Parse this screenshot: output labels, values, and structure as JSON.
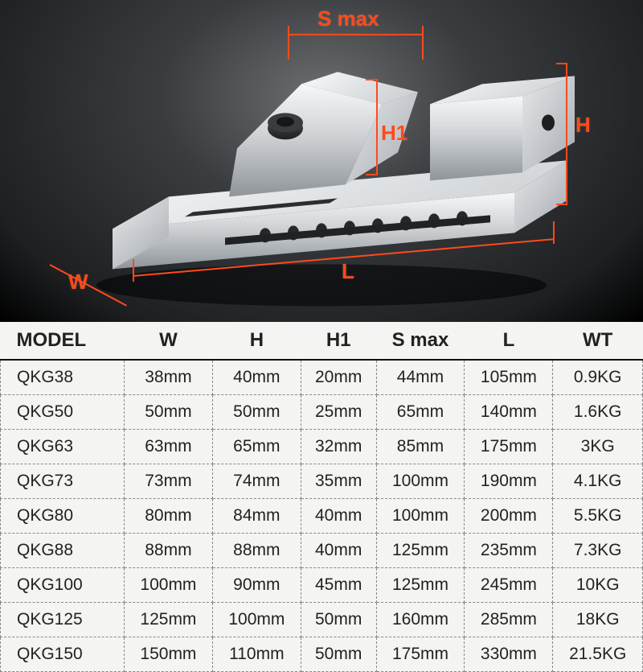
{
  "diagram": {
    "labels": {
      "smax": "S  max",
      "h": "H",
      "h1": "H1",
      "l": "L",
      "w": "W"
    },
    "dim_color": "#ff4a1c",
    "background": "radial-gradient dark gray to black",
    "product": "precision machine vise, steel, silver"
  },
  "table": {
    "columns": [
      "MODEL",
      "W",
      "H",
      "H1",
      "S max",
      "L",
      "WT"
    ],
    "rows": [
      [
        "QKG38",
        "38mm",
        "40mm",
        "20mm",
        "44mm",
        "105mm",
        "0.9KG"
      ],
      [
        "QKG50",
        "50mm",
        "50mm",
        "25mm",
        "65mm",
        "140mm",
        "1.6KG"
      ],
      [
        "QKG63",
        "63mm",
        "65mm",
        "32mm",
        "85mm",
        "175mm",
        "3KG"
      ],
      [
        "QKG73",
        "73mm",
        "74mm",
        "35mm",
        "100mm",
        "190mm",
        "4.1KG"
      ],
      [
        "QKG80",
        "80mm",
        "84mm",
        "40mm",
        "100mm",
        "200mm",
        "5.5KG"
      ],
      [
        "QKG88",
        "88mm",
        "88mm",
        "40mm",
        "125mm",
        "235mm",
        "7.3KG"
      ],
      [
        "QKG100",
        "100mm",
        "90mm",
        "45mm",
        "125mm",
        "245mm",
        "10KG"
      ],
      [
        "QKG125",
        "125mm",
        "100mm",
        "50mm",
        "160mm",
        "285mm",
        "18KG"
      ],
      [
        "QKG150",
        "150mm",
        "110mm",
        "50mm",
        "175mm",
        "330mm",
        "21.5KG"
      ]
    ],
    "header_fontsize": 24,
    "cell_fontsize": 21,
    "border_style": "dashed",
    "border_color": "#888888",
    "header_underline_color": "#111111",
    "text_color": "#222222",
    "background_color": "#f4f4f2"
  }
}
